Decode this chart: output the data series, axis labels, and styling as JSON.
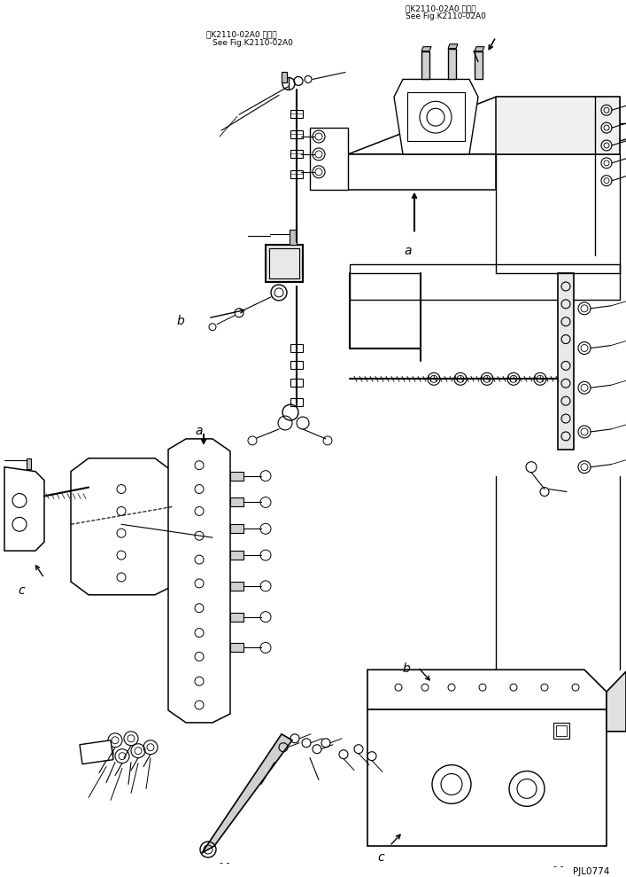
{
  "background_color": "#ffffff",
  "line_color": "#000000",
  "fig_width": 7.07,
  "fig_height": 9.89,
  "dpi": 100,
  "top_right_text1": "第K2110-02A0 図参照",
  "top_right_text2": "See Fig.K2110-02A0",
  "top_mid_text1": "第K2110-02A0 図参照",
  "top_mid_text2": "See Fig.K2110-02A0",
  "bottom_right_text": "PJL0774",
  "label_a1": "a",
  "label_b1": "b",
  "label_c1": "c",
  "label_a2": "a",
  "label_b2": "b",
  "label_c2": "c"
}
